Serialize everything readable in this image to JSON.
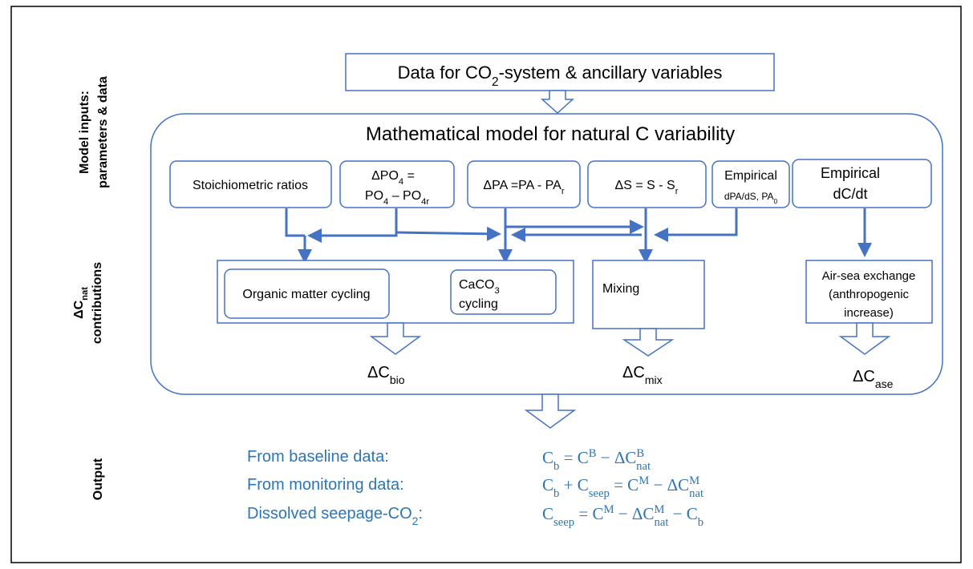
{
  "side_labels": {
    "inputs": [
      "Model inputs:",
      "parameters & data"
    ],
    "contributions": [
      "ΔC",
      "nat",
      "contributions"
    ],
    "output": "Output"
  },
  "data_box": [
    "Data for CO",
    "2",
    "-system & ancillary variables"
  ],
  "model_title": "Mathematical model for natural C variability",
  "inputs": {
    "stoich": "Stoichiometric ratios",
    "dpo4": [
      "ΔPO",
      "4",
      " =",
      "PO",
      "4",
      " – PO",
      "4r"
    ],
    "dpa": [
      "ΔPA =PA - PA",
      "r"
    ],
    "ds": [
      "ΔS = S - S",
      "r"
    ],
    "emp_pa": [
      "Empirical",
      "dPA/dS, PA",
      "0"
    ],
    "emp_c": [
      "Empirical",
      "dC/dt"
    ]
  },
  "contributions": {
    "organic": "Organic matter cycling",
    "caco3": [
      "CaCO",
      "3",
      "cycling"
    ],
    "mixing": "Mixing",
    "airsea": [
      "Air-sea exchange",
      "(anthropogenic",
      "increase)"
    ]
  },
  "deltas": {
    "bio": [
      "ΔC",
      "bio"
    ],
    "mix": [
      "ΔC",
      "mix"
    ],
    "ase": [
      "ΔC",
      "ase"
    ]
  },
  "output": {
    "labels": [
      [
        "From baseline data:"
      ],
      [
        "From monitoring data:"
      ],
      [
        "Dissolved seepage-CO",
        "2",
        ":"
      ]
    ],
    "formulas": [
      [
        "C",
        "b",
        " = C",
        "B",
        " − ΔC",
        "B",
        "nat"
      ],
      [
        "C",
        "b",
        " + C",
        "seep",
        " = C",
        "M",
        " − ΔC",
        "M",
        "nat"
      ],
      [
        "C",
        "seep",
        " = C",
        "M",
        " − ΔC",
        "M",
        "nat",
        " − C",
        "b"
      ]
    ]
  }
}
